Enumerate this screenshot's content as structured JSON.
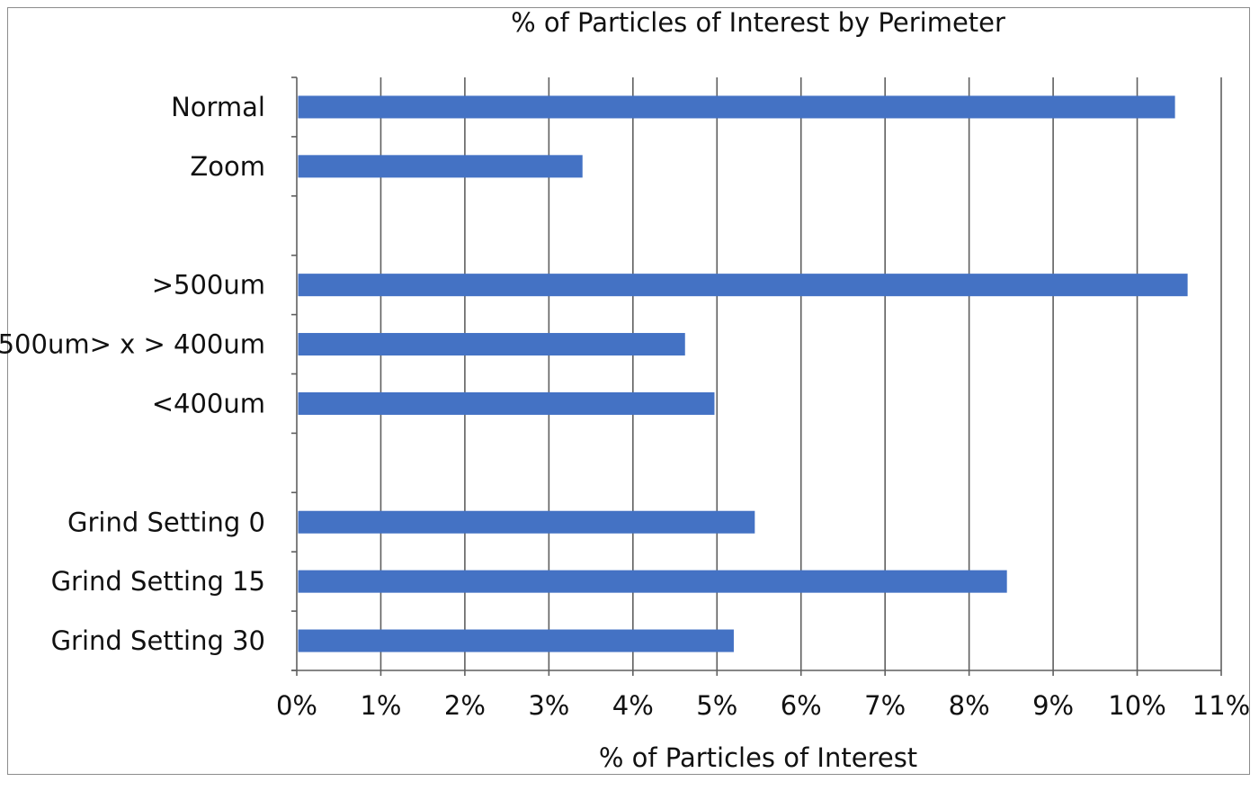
{
  "chart_data": {
    "type": "bar",
    "orientation": "horizontal",
    "title": "% of Particles of Interest by Perimeter",
    "xlabel": "% of Particles of Interest",
    "ylabel": "",
    "xlim": [
      0,
      11
    ],
    "x_ticks": [
      "0%",
      "1%",
      "2%",
      "3%",
      "4%",
      "5%",
      "6%",
      "7%",
      "8%",
      "9%",
      "10%",
      "11%"
    ],
    "grid": "vertical major gridlines",
    "legend": "none",
    "bar_color": "#4472C4",
    "categories": [
      "Normal",
      "Zoom",
      "",
      ">500um",
      "500um> x > 400um",
      "<400um",
      "",
      "Grind Setting 0",
      "Grind Setting 15",
      "Grind Setting 30"
    ],
    "values": [
      10.45,
      3.4,
      null,
      10.6,
      4.62,
      4.97,
      null,
      5.45,
      8.45,
      5.2
    ]
  }
}
